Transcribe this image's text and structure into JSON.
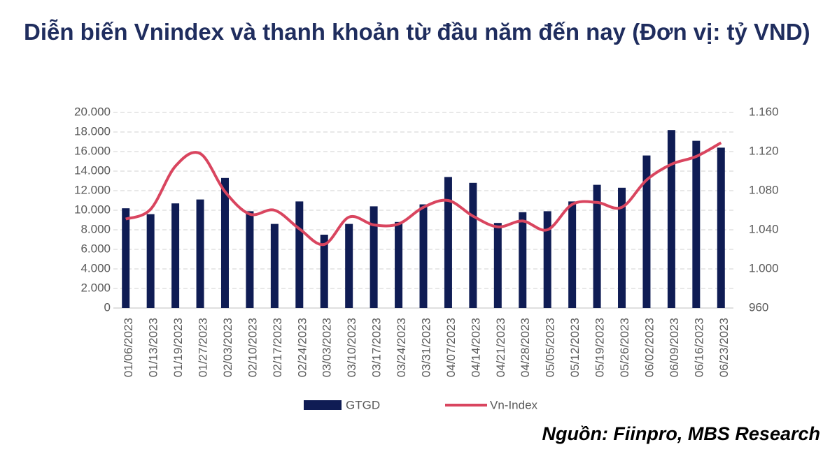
{
  "chart_data": {
    "type": "bar-line",
    "title": "Diễn biến Vnindex và thanh khoản từ đầu năm đến nay (Đơn vị: tỷ VND)",
    "source": "Nguồn: Fiinpro, MBS Research",
    "categories": [
      "01/06/2023",
      "01/13/2023",
      "01/19/2023",
      "01/27/2023",
      "02/03/2023",
      "02/10/2023",
      "02/17/2023",
      "02/24/2023",
      "03/03/2023",
      "03/10/2023",
      "03/17/2023",
      "03/24/2023",
      "03/31/2023",
      "04/07/2023",
      "04/14/2023",
      "04/21/2023",
      "04/28/2023",
      "05/05/2023",
      "05/12/2023",
      "05/19/2023",
      "05/26/2023",
      "06/02/2023",
      "06/09/2023",
      "06/16/2023",
      "06/23/2023"
    ],
    "series": [
      {
        "name": "GTGD",
        "type": "bar",
        "color": "#0f1c54",
        "values": [
          10200,
          9600,
          10700,
          11100,
          13300,
          9900,
          8600,
          10900,
          7500,
          8600,
          10400,
          8800,
          10600,
          13400,
          12800,
          8700,
          9800,
          9900,
          10900,
          12600,
          12300,
          15600,
          18200,
          17100,
          16400
        ]
      },
      {
        "name": "Vn-Index",
        "type": "line",
        "axis": "y2",
        "color": "#d9455f",
        "values": [
          1051,
          1061,
          1105,
          1118,
          1079,
          1056,
          1060,
          1041,
          1025,
          1053,
          1045,
          1046,
          1063,
          1070,
          1054,
          1043,
          1049,
          1040,
          1066,
          1068,
          1063,
          1091,
          1107,
          1115,
          1129
        ]
      }
    ],
    "ylim": [
      0,
      20000
    ],
    "yticks": [
      0,
      {
        "value": 2000,
        "label": "2.000"
      },
      {
        "value": 4000,
        "label": "4.000"
      },
      {
        "value": 6000,
        "label": "6.000"
      },
      {
        "value": 8000,
        "label": "8.000"
      },
      {
        "value": 10000,
        "label": "10.000"
      },
      {
        "value": 12000,
        "label": "12.000"
      },
      {
        "value": 14000,
        "label": "14.000"
      },
      {
        "value": 16000,
        "label": "16.000"
      },
      {
        "value": 18000,
        "label": "18.000"
      },
      {
        "value": 20000,
        "label": "20.000"
      }
    ],
    "y2lim": [
      960,
      1160
    ],
    "y2ticks": [
      960,
      {
        "value": 1000,
        "label": "1.000"
      },
      {
        "value": 1040,
        "label": "1.040"
      },
      {
        "value": 1080,
        "label": "1.080"
      },
      {
        "value": 1120,
        "label": "1.120"
      },
      {
        "value": 1160,
        "label": "1.160"
      }
    ],
    "grid": true
  }
}
